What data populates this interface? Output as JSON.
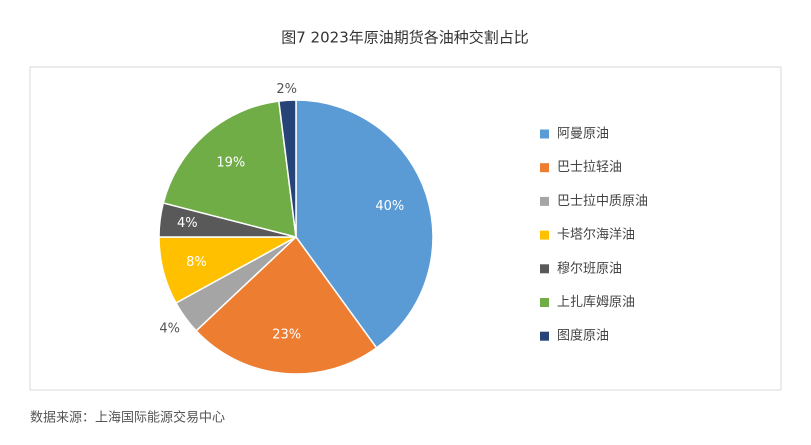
{
  "chart_data": {
    "type": "pie",
    "title": "图7 2023年原油期货各油种交割占比",
    "categories": [
      "阿曼原油",
      "巴士拉轻油",
      "巴士拉中质原油",
      "卡塔尔海洋油",
      "穆尔班原油",
      "上扎库姆原油",
      "图度原油"
    ],
    "values": [
      40,
      23,
      4,
      8,
      4,
      19,
      2
    ],
    "value_labels": [
      "40%",
      "23%",
      "4%",
      "8%",
      "4%",
      "19%",
      "2%"
    ],
    "colors": [
      "#5b9bd5",
      "#ed7d31",
      "#a5a5a5",
      "#ffc000",
      "#595959",
      "#70ad47",
      "#264478"
    ],
    "legend": "right",
    "source": "数据来源：上海国际能源交易中心"
  }
}
